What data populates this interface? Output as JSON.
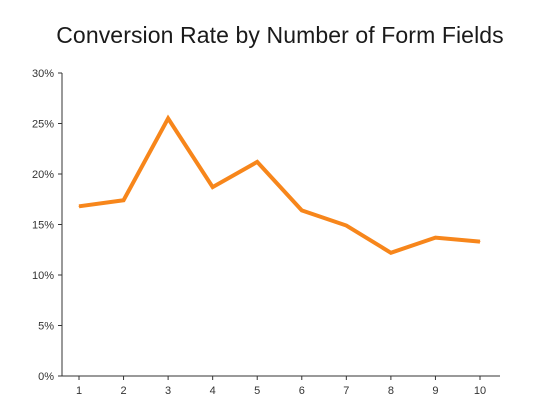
{
  "chart_data": {
    "type": "line",
    "title": "Conversion Rate by Number of Form Fields",
    "xlabel": "",
    "ylabel": "",
    "x": [
      1,
      2,
      3,
      4,
      5,
      6,
      7,
      8,
      9,
      10
    ],
    "y_tick_labels": [
      "0%",
      "5%",
      "10%",
      "15%",
      "20%",
      "25%",
      "30%"
    ],
    "x_tick_labels": [
      "1",
      "2",
      "3",
      "4",
      "5",
      "6",
      "7",
      "8",
      "9",
      "10"
    ],
    "ylim": [
      0,
      30
    ],
    "series": [
      {
        "values": [
          16.8,
          17.4,
          25.5,
          18.7,
          21.2,
          16.4,
          14.9,
          12.2,
          13.7,
          13.3
        ],
        "color": "#f7861b"
      }
    ],
    "grid": false,
    "legend": "none"
  }
}
